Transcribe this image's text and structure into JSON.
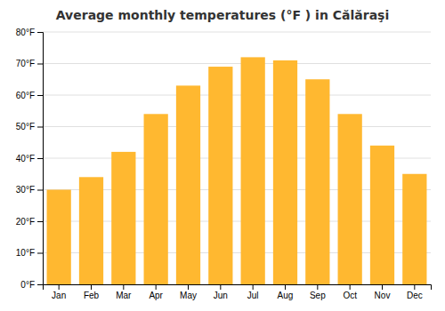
{
  "chart_data": {
    "type": "bar",
    "title": "Average monthly temperatures (°F ) in Călăraşi",
    "categories": [
      "Jan",
      "Feb",
      "Mar",
      "Apr",
      "May",
      "Jun",
      "Jul",
      "Aug",
      "Sep",
      "Oct",
      "Nov",
      "Dec"
    ],
    "values": [
      30,
      34,
      42,
      54,
      63,
      69,
      72,
      71,
      65,
      54,
      44,
      35
    ],
    "color": "#FFB830",
    "ylim": [
      0,
      80
    ],
    "yticks": [
      {
        "value": 0,
        "label": "0°F"
      },
      {
        "value": 10,
        "label": "10°F"
      },
      {
        "value": 20,
        "label": "20°F"
      },
      {
        "value": 30,
        "label": "30°F"
      },
      {
        "value": 40,
        "label": "40°F"
      },
      {
        "value": 50,
        "label": "50°F"
      },
      {
        "value": 60,
        "label": "60°F"
      },
      {
        "value": 70,
        "label": "70°F"
      },
      {
        "value": 80,
        "label": "80°F"
      }
    ],
    "grid": true
  }
}
